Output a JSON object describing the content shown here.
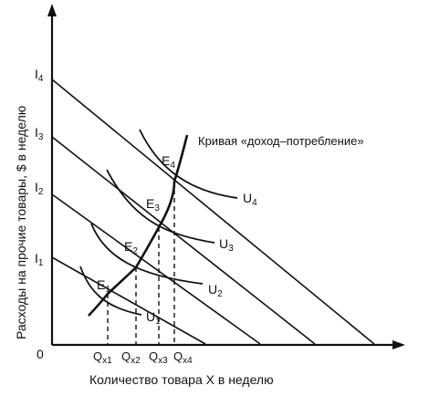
{
  "axes": {
    "x_title": "Количество товара X в неделю",
    "y_title": "Расходы на прочие товары, $ в неделю",
    "origin": "0"
  },
  "icc_label": "Кривая «доход–потребление»",
  "y_levels": [
    {
      "main": "I",
      "sub": "1"
    },
    {
      "main": "I",
      "sub": "2"
    },
    {
      "main": "I",
      "sub": "3"
    },
    {
      "main": "I",
      "sub": "4"
    }
  ],
  "equilibria": [
    {
      "main": "E",
      "sub": "1"
    },
    {
      "main": "E",
      "sub": "2"
    },
    {
      "main": "E",
      "sub": "3"
    },
    {
      "main": "E",
      "sub": "4"
    }
  ],
  "utility_curves": [
    {
      "main": "U",
      "sub": "1"
    },
    {
      "main": "U",
      "sub": "2"
    },
    {
      "main": "U",
      "sub": "3"
    },
    {
      "main": "U",
      "sub": "4"
    }
  ],
  "quantities": [
    {
      "main": "Q",
      "sub": "x1"
    },
    {
      "main": "Q",
      "sub": "x2"
    },
    {
      "main": "Q",
      "sub": "x3"
    },
    {
      "main": "Q",
      "sub": "x4"
    }
  ]
}
